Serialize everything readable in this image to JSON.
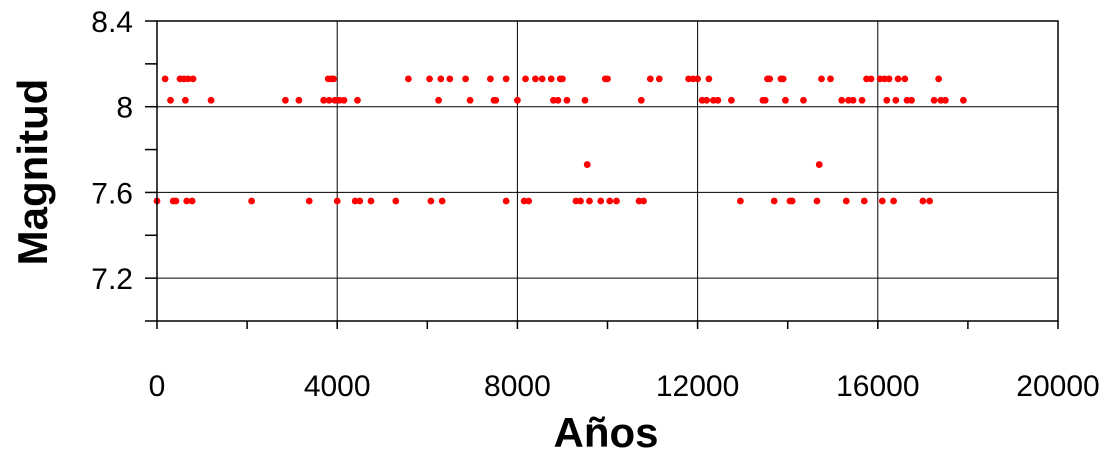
{
  "chart_data": {
    "type": "scatter",
    "xlabel": "Años",
    "ylabel": "Magnitud",
    "xlim": [
      0,
      20000
    ],
    "ylim": [
      7.0,
      8.4
    ],
    "x_ticks": [
      0,
      4000,
      8000,
      12000,
      16000,
      20000
    ],
    "x_tick_labels": [
      "0",
      "4000",
      "8000",
      "12000",
      "16000",
      "20000"
    ],
    "y_ticks": [
      7.2,
      7.6,
      8.0,
      8.4
    ],
    "y_tick_labels": [
      "7.2",
      "7.6",
      "8",
      "8.4"
    ],
    "grid": true,
    "marker_color": "#ff0000",
    "points": [
      {
        "x": 0,
        "y": 7.56
      },
      {
        "x": 180,
        "y": 8.13
      },
      {
        "x": 300,
        "y": 8.03
      },
      {
        "x": 360,
        "y": 7.56
      },
      {
        "x": 420,
        "y": 7.56
      },
      {
        "x": 510,
        "y": 8.13
      },
      {
        "x": 600,
        "y": 8.13
      },
      {
        "x": 630,
        "y": 8.03
      },
      {
        "x": 660,
        "y": 7.56
      },
      {
        "x": 690,
        "y": 8.13
      },
      {
        "x": 780,
        "y": 7.56
      },
      {
        "x": 800,
        "y": 8.13
      },
      {
        "x": 1200,
        "y": 8.03
      },
      {
        "x": 2100,
        "y": 7.56
      },
      {
        "x": 2850,
        "y": 8.03
      },
      {
        "x": 3150,
        "y": 8.03
      },
      {
        "x": 3380,
        "y": 7.56
      },
      {
        "x": 3700,
        "y": 8.03
      },
      {
        "x": 3800,
        "y": 8.13
      },
      {
        "x": 3820,
        "y": 8.03
      },
      {
        "x": 3870,
        "y": 8.13
      },
      {
        "x": 3920,
        "y": 8.13
      },
      {
        "x": 3950,
        "y": 8.03
      },
      {
        "x": 4000,
        "y": 7.56
      },
      {
        "x": 4050,
        "y": 8.03
      },
      {
        "x": 4150,
        "y": 8.03
      },
      {
        "x": 4400,
        "y": 7.56
      },
      {
        "x": 4450,
        "y": 8.03
      },
      {
        "x": 4500,
        "y": 7.56
      },
      {
        "x": 4750,
        "y": 7.56
      },
      {
        "x": 5300,
        "y": 7.56
      },
      {
        "x": 5580,
        "y": 8.13
      },
      {
        "x": 6050,
        "y": 8.13
      },
      {
        "x": 6080,
        "y": 7.56
      },
      {
        "x": 6250,
        "y": 8.03
      },
      {
        "x": 6300,
        "y": 8.13
      },
      {
        "x": 6330,
        "y": 7.56
      },
      {
        "x": 6500,
        "y": 8.13
      },
      {
        "x": 6850,
        "y": 8.13
      },
      {
        "x": 6950,
        "y": 8.03
      },
      {
        "x": 7400,
        "y": 8.13
      },
      {
        "x": 7480,
        "y": 8.03
      },
      {
        "x": 7520,
        "y": 8.03
      },
      {
        "x": 7750,
        "y": 8.13
      },
      {
        "x": 7750,
        "y": 7.56
      },
      {
        "x": 8000,
        "y": 8.03
      },
      {
        "x": 8150,
        "y": 7.56
      },
      {
        "x": 8180,
        "y": 8.13
      },
      {
        "x": 8250,
        "y": 7.56
      },
      {
        "x": 8400,
        "y": 8.13
      },
      {
        "x": 8550,
        "y": 8.13
      },
      {
        "x": 8750,
        "y": 8.13
      },
      {
        "x": 8800,
        "y": 8.03
      },
      {
        "x": 8900,
        "y": 8.03
      },
      {
        "x": 8950,
        "y": 8.13
      },
      {
        "x": 9000,
        "y": 8.13
      },
      {
        "x": 9100,
        "y": 8.03
      },
      {
        "x": 9300,
        "y": 7.56
      },
      {
        "x": 9400,
        "y": 7.56
      },
      {
        "x": 9500,
        "y": 8.03
      },
      {
        "x": 9550,
        "y": 7.73
      },
      {
        "x": 9600,
        "y": 7.56
      },
      {
        "x": 9850,
        "y": 7.56
      },
      {
        "x": 9950,
        "y": 8.13
      },
      {
        "x": 10000,
        "y": 8.13
      },
      {
        "x": 10050,
        "y": 7.56
      },
      {
        "x": 10200,
        "y": 7.56
      },
      {
        "x": 10700,
        "y": 7.56
      },
      {
        "x": 10750,
        "y": 8.03
      },
      {
        "x": 10800,
        "y": 7.56
      },
      {
        "x": 10950,
        "y": 8.13
      },
      {
        "x": 11150,
        "y": 8.13
      },
      {
        "x": 11800,
        "y": 8.13
      },
      {
        "x": 11900,
        "y": 8.13
      },
      {
        "x": 12000,
        "y": 8.13
      },
      {
        "x": 12100,
        "y": 8.03
      },
      {
        "x": 12200,
        "y": 8.03
      },
      {
        "x": 12250,
        "y": 8.13
      },
      {
        "x": 12350,
        "y": 8.03
      },
      {
        "x": 12450,
        "y": 8.03
      },
      {
        "x": 12750,
        "y": 8.03
      },
      {
        "x": 12950,
        "y": 7.56
      },
      {
        "x": 13450,
        "y": 8.03
      },
      {
        "x": 13500,
        "y": 8.03
      },
      {
        "x": 13550,
        "y": 8.13
      },
      {
        "x": 13600,
        "y": 8.13
      },
      {
        "x": 13700,
        "y": 7.56
      },
      {
        "x": 13850,
        "y": 8.13
      },
      {
        "x": 13900,
        "y": 8.13
      },
      {
        "x": 13950,
        "y": 8.03
      },
      {
        "x": 14050,
        "y": 7.56
      },
      {
        "x": 14100,
        "y": 7.56
      },
      {
        "x": 14350,
        "y": 8.03
      },
      {
        "x": 14650,
        "y": 7.56
      },
      {
        "x": 14700,
        "y": 7.73
      },
      {
        "x": 14750,
        "y": 8.13
      },
      {
        "x": 14950,
        "y": 8.13
      },
      {
        "x": 15200,
        "y": 8.03
      },
      {
        "x": 15300,
        "y": 7.56
      },
      {
        "x": 15350,
        "y": 8.03
      },
      {
        "x": 15450,
        "y": 8.03
      },
      {
        "x": 15650,
        "y": 8.03
      },
      {
        "x": 15700,
        "y": 7.56
      },
      {
        "x": 15750,
        "y": 8.13
      },
      {
        "x": 15850,
        "y": 8.13
      },
      {
        "x": 16050,
        "y": 8.13
      },
      {
        "x": 16100,
        "y": 7.56
      },
      {
        "x": 16150,
        "y": 8.13
      },
      {
        "x": 16200,
        "y": 8.03
      },
      {
        "x": 16250,
        "y": 8.13
      },
      {
        "x": 16350,
        "y": 7.56
      },
      {
        "x": 16400,
        "y": 8.03
      },
      {
        "x": 16450,
        "y": 8.13
      },
      {
        "x": 16600,
        "y": 8.13
      },
      {
        "x": 16650,
        "y": 8.03
      },
      {
        "x": 16750,
        "y": 8.03
      },
      {
        "x": 17000,
        "y": 7.56
      },
      {
        "x": 17150,
        "y": 7.56
      },
      {
        "x": 17250,
        "y": 8.03
      },
      {
        "x": 17350,
        "y": 8.13
      },
      {
        "x": 17400,
        "y": 8.03
      },
      {
        "x": 17500,
        "y": 8.03
      },
      {
        "x": 17900,
        "y": 8.03
      }
    ]
  }
}
